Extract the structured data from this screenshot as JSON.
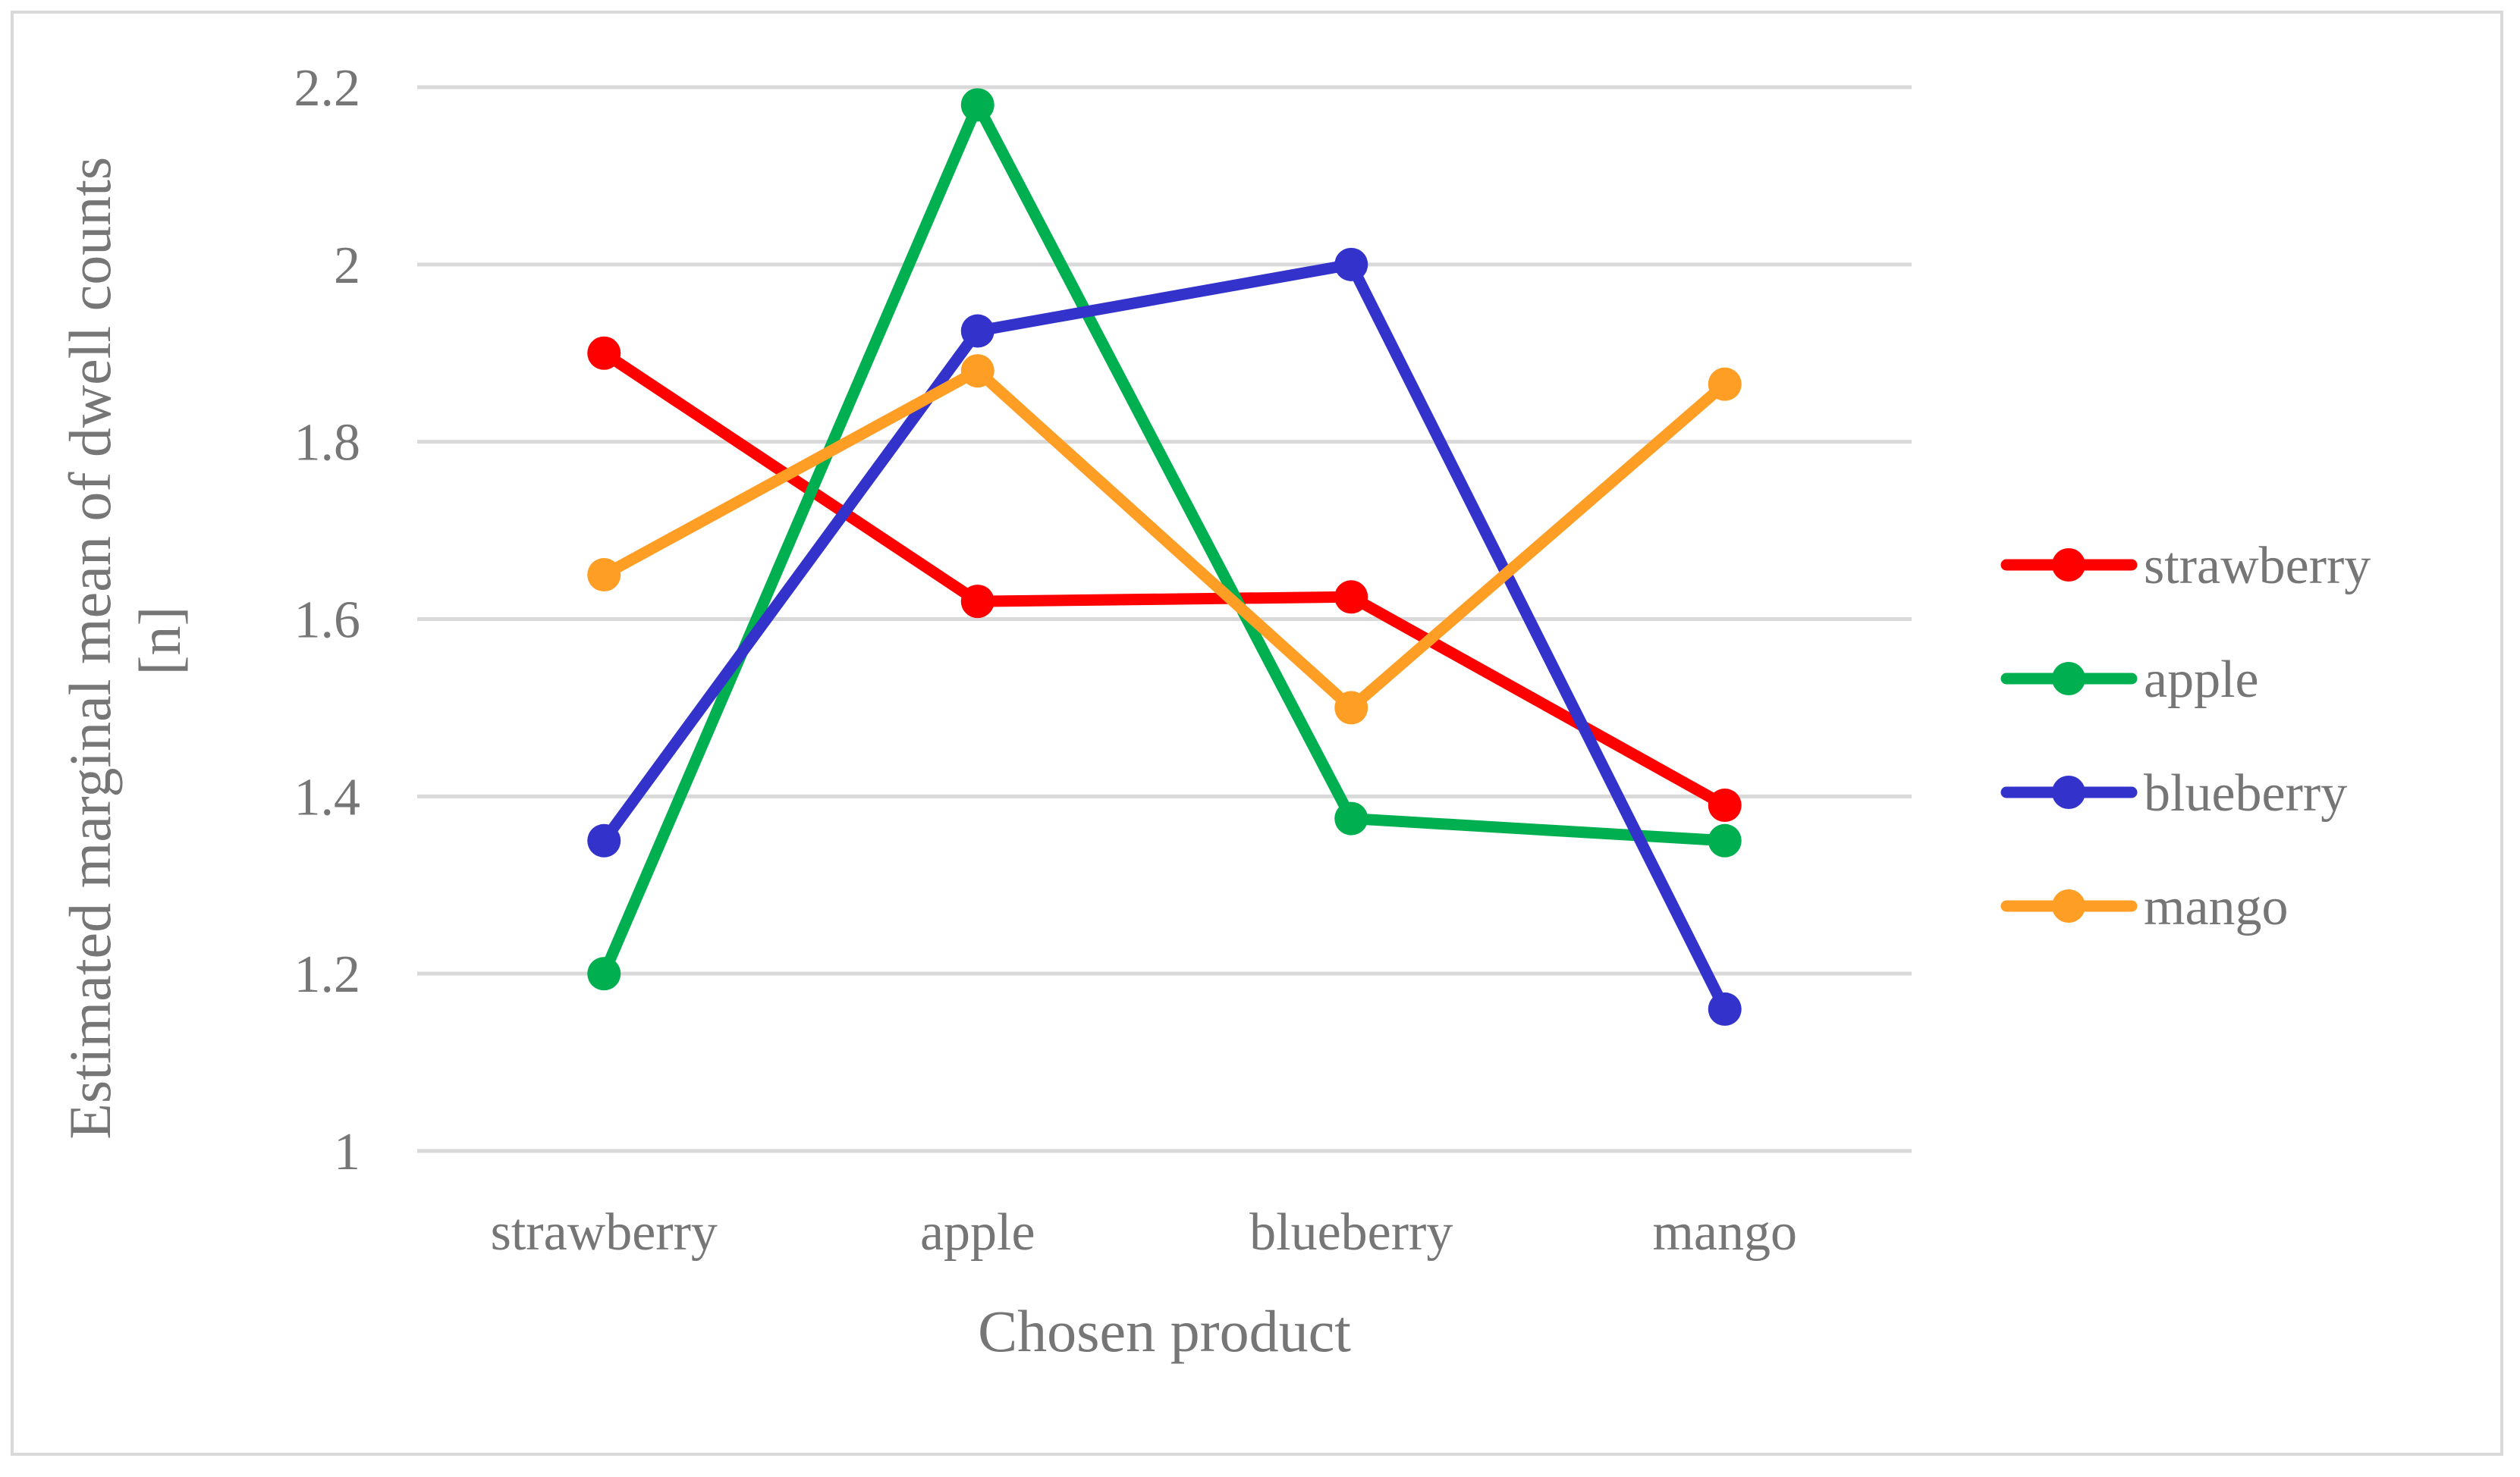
{
  "chart_data": {
    "type": "line",
    "categories": [
      "strawberry",
      "apple",
      "blueberry",
      "mango"
    ],
    "series": [
      {
        "name": "strawberry",
        "color": "#ff0000",
        "values": [
          1.9,
          1.62,
          1.625,
          1.39
        ]
      },
      {
        "name": "apple",
        "color": "#00b050",
        "values": [
          1.2,
          2.18,
          1.375,
          1.35
        ]
      },
      {
        "name": "blueberry",
        "color": "#3333cc",
        "values": [
          1.35,
          1.925,
          2.0,
          1.16
        ]
      },
      {
        "name": "mango",
        "color": "#ff9e25",
        "values": [
          1.65,
          1.88,
          1.5,
          1.865
        ]
      }
    ],
    "yticks": [
      "1",
      "1.2",
      "1.4",
      "1.6",
      "1.8",
      "2",
      "2.2"
    ],
    "ylim": [
      1,
      2.2
    ],
    "xlabel": "Chosen product",
    "ylabel": "Estimated marginal mean of dwell counts [n]",
    "grid": true,
    "legend_position": "right"
  }
}
